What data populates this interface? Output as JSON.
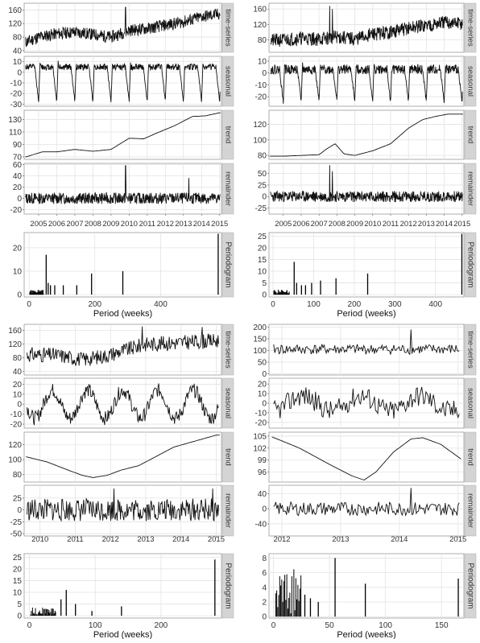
{
  "chart_data": [
    {
      "type": "line",
      "quadrant": "top-left",
      "x_labels": [
        "2005",
        "2006",
        "2007",
        "2008",
        "2009",
        "2010",
        "2011",
        "2012",
        "2013",
        "2014",
        "2015"
      ],
      "x_range": [
        2004.2,
        2015.1
      ],
      "panels": [
        {
          "strip": "time-series",
          "ticks": [
            40,
            80,
            120,
            160
          ],
          "ylim": [
            35,
            180
          ],
          "kind": "noisy",
          "base": [
            [
              2004.3,
              65
            ],
            [
              2005,
              80
            ],
            [
              2006,
              90
            ],
            [
              2007,
              95
            ],
            [
              2008,
              88
            ],
            [
              2009,
              80
            ],
            [
              2010,
              100
            ],
            [
              2011,
              105
            ],
            [
              2012,
              115
            ],
            [
              2013,
              125
            ],
            [
              2014,
              140
            ],
            [
              2015,
              148
            ]
          ],
          "amp": 18,
          "spikes": [
            [
              2009.8,
              168
            ]
          ],
          "seed": 11
        },
        {
          "strip": "seasonal",
          "ticks": [
            -30,
            -20,
            -10,
            0,
            10
          ],
          "ylim": [
            -32,
            15
          ],
          "kind": "seasonal",
          "period": 1.0,
          "low": -28,
          "high": 11,
          "jitter": 3,
          "seed": 12
        },
        {
          "strip": "trend",
          "ticks": [
            70,
            90,
            110,
            130
          ],
          "ylim": [
            66,
            145
          ],
          "kind": "smooth",
          "points": [
            [
              2004.3,
              70
            ],
            [
              2005.2,
              78
            ],
            [
              2006,
              78
            ],
            [
              2007,
              82
            ],
            [
              2008,
              79
            ],
            [
              2009,
              82
            ],
            [
              2010,
              100
            ],
            [
              2010.8,
              99
            ],
            [
              2011.5,
              108
            ],
            [
              2012.5,
              120
            ],
            [
              2013.5,
              135
            ],
            [
              2014.2,
              136
            ],
            [
              2015,
              141
            ]
          ]
        },
        {
          "strip": "remainder",
          "ticks": [
            -20,
            0,
            20,
            40,
            60
          ],
          "ylim": [
            -28,
            62
          ],
          "kind": "noisy",
          "base": [
            [
              2004.3,
              0
            ],
            [
              2015,
              0
            ]
          ],
          "amp": 10,
          "spikes": [
            [
              2009.8,
              58
            ],
            [
              2013.3,
              36
            ]
          ],
          "seed": 13
        }
      ],
      "periodogram": {
        "strip": "Periodogram",
        "x_ticks": [
          0,
          200,
          400
        ],
        "xlim": [
          -15,
          585
        ],
        "y_ticks": [
          0,
          10,
          20
        ],
        "ylim": [
          -1,
          26.5
        ],
        "xlabel": "Period (weeks)",
        "bars": [
          [
            52,
            17
          ],
          [
            58,
            5
          ],
          [
            65,
            4
          ],
          [
            78,
            4
          ],
          [
            104,
            4
          ],
          [
            145,
            4
          ],
          [
            190,
            9
          ],
          [
            285,
            10
          ],
          [
            575,
            26
          ]
        ],
        "dense_max": 45,
        "dense_height": 2,
        "seed": 14
      }
    },
    {
      "type": "line",
      "quadrant": "top-right",
      "x_labels": [
        "2005",
        "2006",
        "2007",
        "2008",
        "2009",
        "2010",
        "2011",
        "2012",
        "2013",
        "2014",
        "2015"
      ],
      "x_range": [
        2004.2,
        2015.1
      ],
      "panels": [
        {
          "strip": "time-series",
          "ticks": [
            80,
            120,
            160
          ],
          "ylim": [
            48,
            175
          ],
          "kind": "noisy",
          "base": [
            [
              2004.3,
              78
            ],
            [
              2005,
              80
            ],
            [
              2006,
              85
            ],
            [
              2007,
              82
            ],
            [
              2008,
              88
            ],
            [
              2009,
              82
            ],
            [
              2010,
              95
            ],
            [
              2011,
              100
            ],
            [
              2012,
              110
            ],
            [
              2013,
              118
            ],
            [
              2014,
              125
            ],
            [
              2015,
              122
            ]
          ],
          "amp": 18,
          "spikes": [
            [
              2007.6,
              168
            ],
            [
              2007.75,
              160
            ]
          ],
          "seed": 21
        },
        {
          "strip": "seasonal",
          "ticks": [
            -20,
            -10,
            0,
            10
          ],
          "ylim": [
            -28,
            14
          ],
          "kind": "seasonal",
          "period": 1.0,
          "low": -24,
          "high": 9,
          "jitter": 4,
          "seed": 22
        },
        {
          "strip": "trend",
          "ticks": [
            80,
            100,
            120
          ],
          "ylim": [
            75,
            138
          ],
          "kind": "smooth",
          "points": [
            [
              2004.3,
              79
            ],
            [
              2005,
              79
            ],
            [
              2006,
              80
            ],
            [
              2007,
              81
            ],
            [
              2007.4,
              88
            ],
            [
              2007.9,
              95
            ],
            [
              2008.4,
              82
            ],
            [
              2009,
              80
            ],
            [
              2010,
              86
            ],
            [
              2011,
              95
            ],
            [
              2012,
              115
            ],
            [
              2012.8,
              126
            ],
            [
              2013.5,
              130
            ],
            [
              2014.2,
              133
            ],
            [
              2015,
              133
            ]
          ]
        },
        {
          "strip": "remainder",
          "ticks": [
            -25,
            0,
            25,
            50
          ],
          "ylim": [
            -38,
            72
          ],
          "kind": "noisy",
          "base": [
            [
              2004.3,
              0
            ],
            [
              2015,
              0
            ]
          ],
          "amp": 12,
          "spikes": [
            [
              2007.6,
              68
            ],
            [
              2007.75,
              55
            ]
          ],
          "seed": 23
        }
      ],
      "periodogram": {
        "strip": "Periodogram",
        "x_ticks": [
          0,
          100,
          200,
          300,
          400
        ],
        "xlim": [
          -10,
          470
        ],
        "y_ticks": [
          0,
          5,
          10,
          15,
          20,
          25
        ],
        "ylim": [
          -1,
          26.5
        ],
        "xlabel": "Period (weeks)",
        "bars": [
          [
            52,
            14
          ],
          [
            58,
            5
          ],
          [
            70,
            4
          ],
          [
            80,
            4
          ],
          [
            95,
            5
          ],
          [
            117,
            6
          ],
          [
            155,
            7
          ],
          [
            233,
            9
          ],
          [
            465,
            26
          ]
        ],
        "dense_max": 40,
        "dense_height": 2.2,
        "seed": 24
      }
    },
    {
      "type": "line",
      "quadrant": "bottom-left",
      "x_labels": [
        "2010",
        "2011",
        "2012",
        "2013",
        "2014",
        "2015"
      ],
      "x_range": [
        2009.55,
        2015.15
      ],
      "panels": [
        {
          "strip": "time-series",
          "ticks": [
            40,
            80,
            120,
            160
          ],
          "ylim": [
            30,
            178
          ],
          "kind": "noisy",
          "base": [
            [
              2009.6,
              90
            ],
            [
              2010.5,
              88
            ],
            [
              2011.2,
              75
            ],
            [
              2011.8,
              85
            ],
            [
              2012.5,
              105
            ],
            [
              2013,
              120
            ],
            [
              2014,
              125
            ],
            [
              2015,
              130
            ]
          ],
          "amp": 22,
          "spikes": [
            [
              2012.9,
              172
            ],
            [
              2014.6,
              170
            ]
          ],
          "seed": 31
        },
        {
          "strip": "seasonal",
          "ticks": [
            -20,
            -10,
            0,
            10,
            20
          ],
          "ylim": [
            -24,
            26
          ],
          "kind": "seasonal2",
          "period": 1.0,
          "amp": 14,
          "jitter": 7,
          "seed": 32
        },
        {
          "strip": "trend",
          "ticks": [
            80,
            100,
            120
          ],
          "ylim": [
            70,
            137
          ],
          "kind": "smooth",
          "points": [
            [
              2009.6,
              104
            ],
            [
              2010.2,
              97
            ],
            [
              2010.8,
              86
            ],
            [
              2011.2,
              79
            ],
            [
              2011.5,
              76
            ],
            [
              2011.9,
              79
            ],
            [
              2012.3,
              86
            ],
            [
              2012.8,
              92
            ],
            [
              2013.2,
              102
            ],
            [
              2013.8,
              117
            ],
            [
              2014.4,
              125
            ],
            [
              2015,
              133
            ]
          ]
        },
        {
          "strip": "remainder",
          "ticks": [
            -50,
            -25,
            0,
            25
          ],
          "ylim": [
            -55,
            52
          ],
          "kind": "noisy",
          "base": [
            [
              2009.6,
              0
            ],
            [
              2015.1,
              0
            ]
          ],
          "amp": 24,
          "spikes": [
            [
              2012.1,
              45
            ],
            [
              2014.9,
              45
            ]
          ],
          "seed": 33
        }
      ],
      "periodogram": {
        "strip": "Periodogram",
        "x_ticks": [
          0,
          100,
          200
        ],
        "xlim": [
          -8,
          292
        ],
        "y_ticks": [
          0,
          5,
          10,
          15,
          20,
          25
        ],
        "ylim": [
          -1,
          26.5
        ],
        "xlabel": "Period (weeks)",
        "bars": [
          [
            56,
            11
          ],
          [
            48,
            7
          ],
          [
            70,
            5
          ],
          [
            95,
            2
          ],
          [
            140,
            4
          ],
          [
            282,
            24
          ]
        ],
        "dense_max": 40,
        "dense_height": 3.5,
        "seed": 34
      }
    },
    {
      "type": "line",
      "quadrant": "bottom-right",
      "x_labels": [
        "2012",
        "2013",
        "2014",
        "2015"
      ],
      "x_range": [
        2011.78,
        2015.1
      ],
      "panels": [
        {
          "strip": "time-series",
          "ticks": [
            0,
            50,
            100,
            150,
            200
          ],
          "ylim": [
            -5,
            212
          ],
          "kind": "noisy",
          "base": [
            [
              2011.8,
              105
            ],
            [
              2015,
              105
            ]
          ],
          "amp": 22,
          "spikes": [
            [
              2014.2,
              190
            ],
            [
              2015.05,
              5
            ]
          ],
          "seed": 41
        },
        {
          "strip": "seasonal",
          "ticks": [
            -20,
            -10,
            0,
            10,
            20
          ],
          "ylim": [
            -26,
            26
          ],
          "kind": "seasonal2",
          "period": 1.0,
          "amp": 8,
          "jitter": 11,
          "seed": 42
        },
        {
          "strip": "trend",
          "ticks": [
            96,
            99,
            102,
            105
          ],
          "ylim": [
            93.5,
            106
          ],
          "kind": "smooth",
          "points": [
            [
              2011.8,
              105
            ],
            [
              2012.3,
              102
            ],
            [
              2012.8,
              98
            ],
            [
              2013.2,
              95
            ],
            [
              2013.4,
              94
            ],
            [
              2013.6,
              96
            ],
            [
              2013.9,
              101
            ],
            [
              2014.2,
              104.3
            ],
            [
              2014.4,
              104.6
            ],
            [
              2014.7,
              103
            ],
            [
              2015.05,
              99.3
            ]
          ]
        },
        {
          "strip": "remainder",
          "ticks": [
            -40,
            0,
            40
          ],
          "ylim": [
            -72,
            62
          ],
          "kind": "noisy",
          "base": [
            [
              2011.8,
              0
            ],
            [
              2015,
              0
            ]
          ],
          "amp": 18,
          "spikes": [
            [
              2014.2,
              55
            ],
            [
              2015.05,
              -65
            ]
          ],
          "seed": 43
        }
      ],
      "periodogram": {
        "strip": "Periodogram",
        "x_ticks": [
          0,
          50,
          100,
          150
        ],
        "xlim": [
          -4,
          170
        ],
        "y_ticks": [
          0,
          2,
          4,
          6,
          8
        ],
        "ylim": [
          -0.2,
          8.6
        ],
        "xlabel": "Period (weeks)",
        "bars": [
          [
            55,
            8
          ],
          [
            82,
            4.5
          ],
          [
            165,
            5.2
          ],
          [
            28,
            3
          ],
          [
            33,
            2.5
          ],
          [
            40,
            2
          ]
        ],
        "dense_max": 25,
        "dense_height": 6.5,
        "seed": 44
      }
    }
  ]
}
